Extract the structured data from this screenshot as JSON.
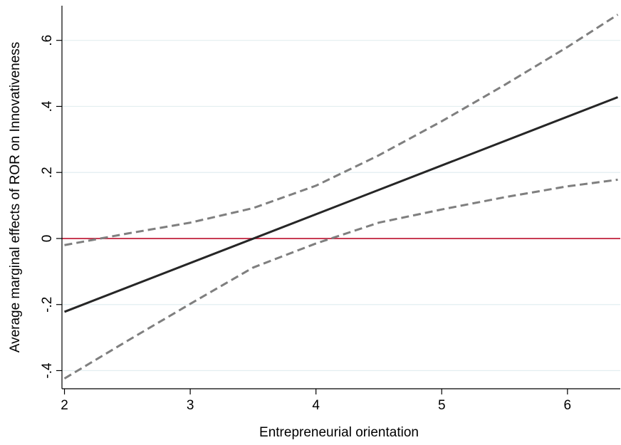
{
  "chart_data": {
    "type": "line",
    "xlabel": "Entrepreneurial orientation",
    "ylabel": "Average marginal effects of ROR on Innovativeness",
    "xlim": [
      1.98,
      6.42
    ],
    "ylim": [
      -0.455,
      0.705
    ],
    "x_ticks": [
      2,
      3,
      4,
      5,
      6
    ],
    "x_tick_labels": [
      "2",
      "3",
      "4",
      "5",
      "6"
    ],
    "y_ticks": [
      -0.4,
      -0.2,
      0,
      0.2,
      0.4,
      0.6
    ],
    "y_tick_labels": [
      "-.4",
      "-.2",
      "0",
      ".2",
      ".4",
      ".6"
    ],
    "grid": "horizontal",
    "reference_line": {
      "y": 0,
      "color": "#c0203b"
    },
    "series": [
      {
        "role": "estimate",
        "style": "solid",
        "color": "#262626",
        "x": [
          2.0,
          6.4
        ],
        "y": [
          -0.222,
          0.428
        ]
      },
      {
        "role": "upper_ci",
        "style": "dashed",
        "color": "#7f7f7f",
        "x": [
          2.0,
          2.5,
          3.0,
          3.5,
          4.0,
          4.5,
          5.0,
          5.5,
          6.0,
          6.4
        ],
        "y": [
          -0.02,
          0.015,
          0.048,
          0.092,
          0.16,
          0.252,
          0.355,
          0.465,
          0.58,
          0.678
        ]
      },
      {
        "role": "lower_ci",
        "style": "dashed",
        "color": "#7f7f7f",
        "x": [
          2.0,
          2.5,
          3.0,
          3.5,
          4.0,
          4.5,
          5.0,
          5.5,
          6.0,
          6.4
        ],
        "y": [
          -0.424,
          -0.31,
          -0.198,
          -0.088,
          -0.015,
          0.048,
          0.088,
          0.125,
          0.158,
          0.178
        ]
      }
    ]
  }
}
